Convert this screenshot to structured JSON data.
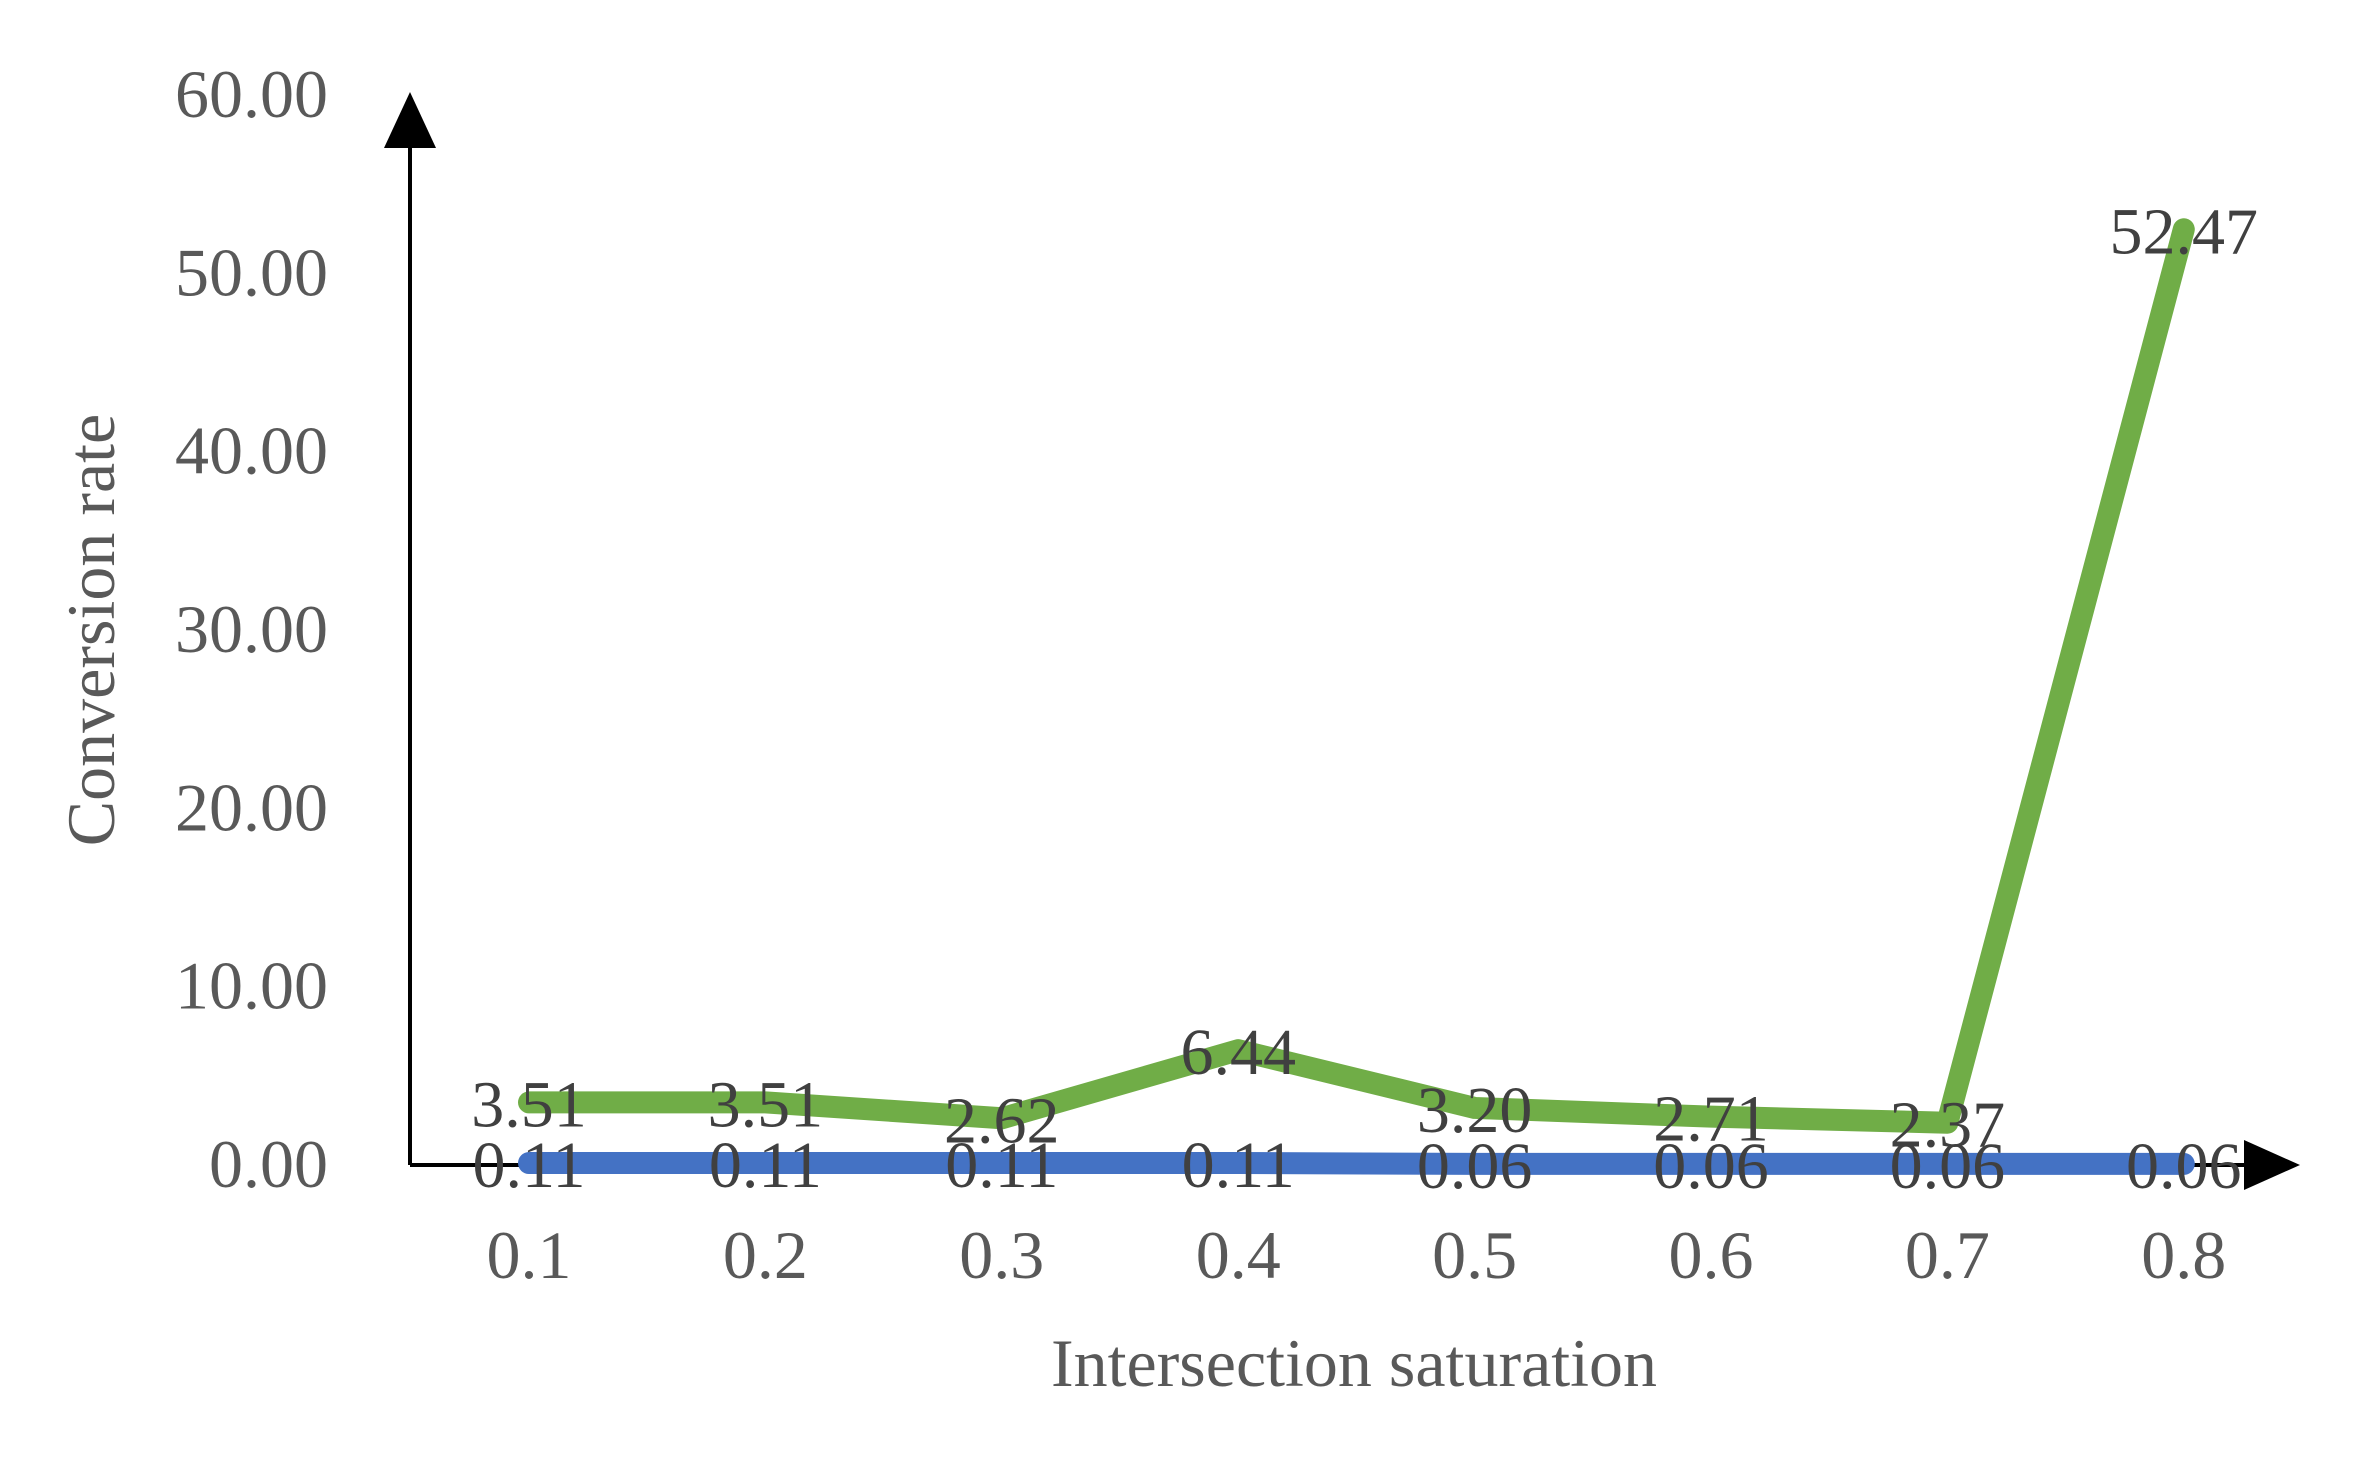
{
  "chart_data": {
    "type": "line",
    "xlabel": "Intersection saturation",
    "ylabel": "Conversion rate",
    "x": [
      "0.1",
      "0.2",
      "0.3",
      "0.4",
      "0.5",
      "0.6",
      "0.7",
      "0.8"
    ],
    "yticks": [
      "0.00",
      "10.00",
      "20.00",
      "30.00",
      "40.00",
      "50.00",
      "60.00"
    ],
    "ylim": [
      0,
      60
    ],
    "grid": false,
    "legend": "none",
    "series": [
      {
        "color": "#70ad47",
        "values": [
          3.51,
          3.51,
          2.62,
          6.44,
          3.2,
          2.71,
          2.37,
          52.47
        ],
        "labels": [
          "3.51",
          "3.51",
          "2.62",
          "6.44",
          "3.20",
          "2.71",
          "2.37",
          "52.47"
        ]
      },
      {
        "color": "#4472c4",
        "values": [
          0.11,
          0.11,
          0.11,
          0.11,
          0.06,
          0.06,
          0.06,
          0.06
        ],
        "labels": [
          "0.11",
          "0.11",
          "0.11",
          "0.11",
          "0.06",
          "0.06",
          "0.06",
          "0.06"
        ]
      }
    ]
  }
}
